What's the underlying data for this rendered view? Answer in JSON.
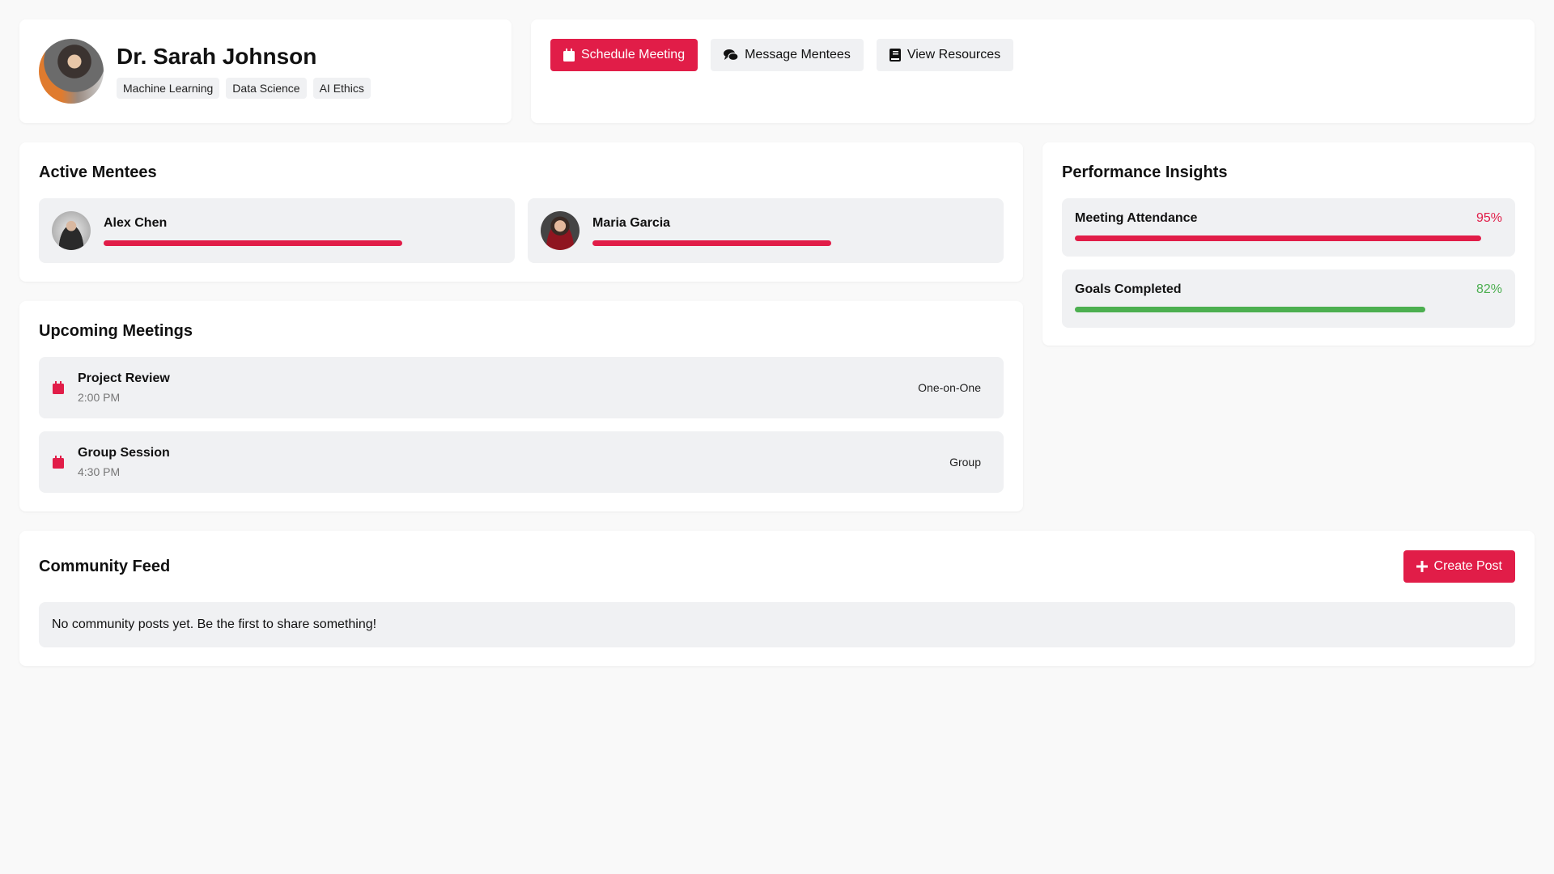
{
  "colors": {
    "accent": "#e11d48",
    "success": "#4caf50",
    "tile": "#f0f1f3",
    "background": "#f9f9f9"
  },
  "profile": {
    "name": "Dr. Sarah Johnson",
    "tags": [
      "Machine Learning",
      "Data Science",
      "AI Ethics"
    ]
  },
  "actions": {
    "schedule": "Schedule Meeting",
    "message": "Message Mentees",
    "resources": "View Resources"
  },
  "mentees": {
    "title": "Active Mentees",
    "items": [
      {
        "name": "Alex Chen",
        "progress": 75
      },
      {
        "name": "Maria Garcia",
        "progress": 60
      }
    ]
  },
  "meetings": {
    "title": "Upcoming Meetings",
    "items": [
      {
        "title": "Project Review",
        "time": "2:00 PM",
        "type": "One-on-One"
      },
      {
        "title": "Group Session",
        "time": "4:30 PM",
        "type": "Group"
      }
    ]
  },
  "performance": {
    "title": "Performance Insights",
    "metrics": [
      {
        "label": "Meeting Attendance",
        "value": "95%",
        "percent": 95,
        "color": "#e11d48"
      },
      {
        "label": "Goals Completed",
        "value": "82%",
        "percent": 82,
        "color": "#4caf50"
      }
    ]
  },
  "community": {
    "title": "Community Feed",
    "create": "Create Post",
    "empty": "No community posts yet. Be the first to share something!"
  }
}
